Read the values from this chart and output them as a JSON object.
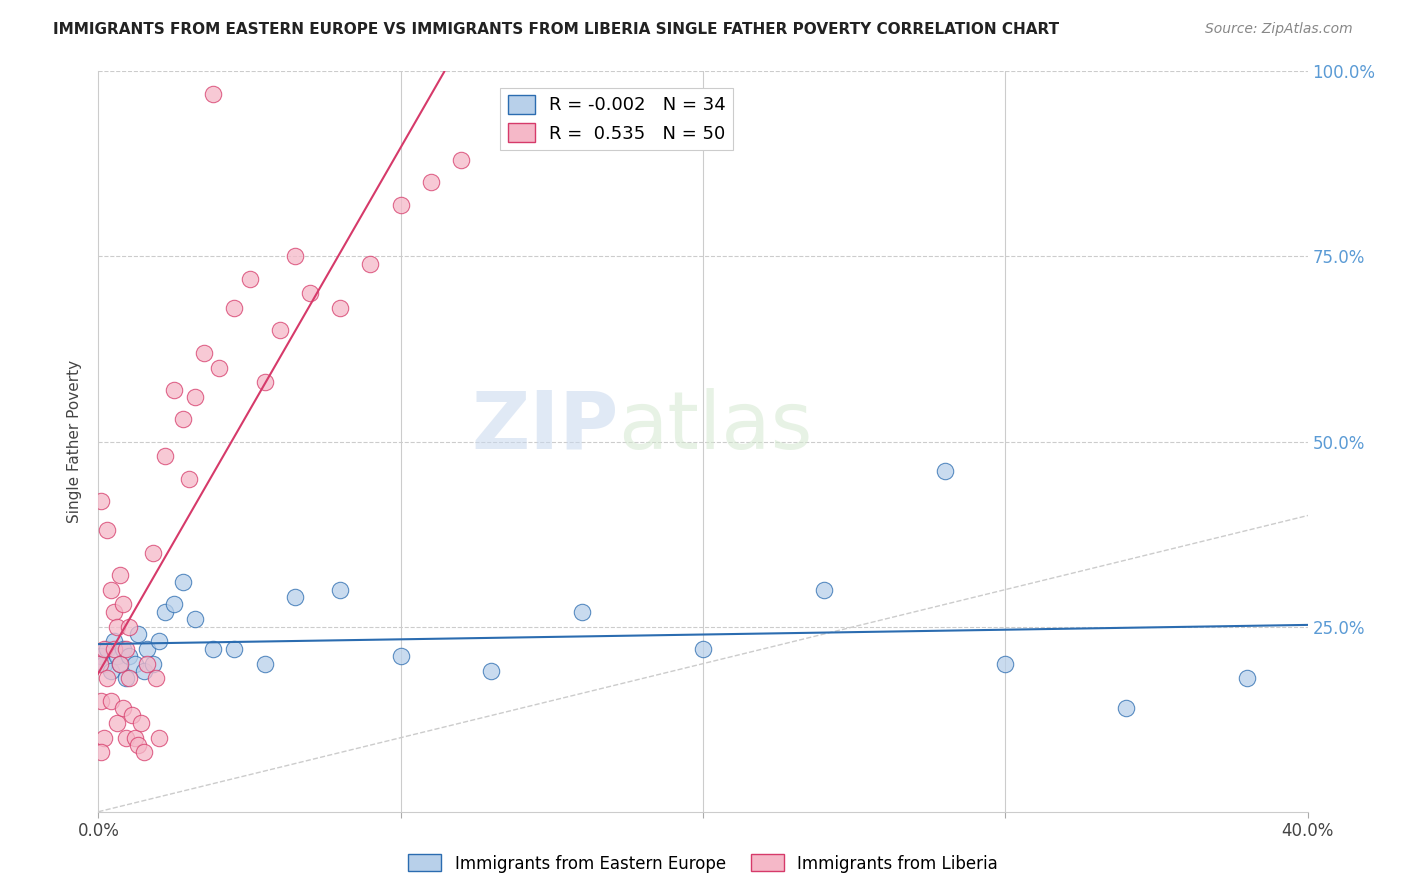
{
  "title": "IMMIGRANTS FROM EASTERN EUROPE VS IMMIGRANTS FROM LIBERIA SINGLE FATHER POVERTY CORRELATION CHART",
  "source": "Source: ZipAtlas.com",
  "ylabel": "Single Father Poverty",
  "legend_label_blue": "Immigrants from Eastern Europe",
  "legend_label_pink": "Immigrants from Liberia",
  "R_blue": -0.002,
  "N_blue": 34,
  "R_pink": 0.535,
  "N_pink": 50,
  "color_blue": "#b8d0ea",
  "color_pink": "#f5b8c8",
  "line_color_blue": "#2b6cb0",
  "line_color_pink": "#d63a6a",
  "watermark_zip": "ZIP",
  "watermark_atlas": "atlas",
  "blue_x": [
    0.001,
    0.002,
    0.003,
    0.004,
    0.005,
    0.006,
    0.007,
    0.008,
    0.009,
    0.01,
    0.012,
    0.013,
    0.015,
    0.016,
    0.018,
    0.02,
    0.022,
    0.025,
    0.028,
    0.032,
    0.038,
    0.045,
    0.055,
    0.065,
    0.08,
    0.1,
    0.13,
    0.16,
    0.2,
    0.24,
    0.28,
    0.3,
    0.34,
    0.38
  ],
  "blue_y": [
    0.21,
    0.2,
    0.22,
    0.19,
    0.23,
    0.21,
    0.2,
    0.22,
    0.18,
    0.21,
    0.2,
    0.24,
    0.19,
    0.22,
    0.2,
    0.23,
    0.27,
    0.28,
    0.31,
    0.26,
    0.22,
    0.22,
    0.2,
    0.29,
    0.3,
    0.21,
    0.19,
    0.27,
    0.22,
    0.3,
    0.46,
    0.2,
    0.14,
    0.18
  ],
  "pink_x": [
    0.0005,
    0.001,
    0.001,
    0.002,
    0.002,
    0.003,
    0.003,
    0.004,
    0.004,
    0.005,
    0.005,
    0.006,
    0.006,
    0.007,
    0.007,
    0.008,
    0.008,
    0.009,
    0.009,
    0.01,
    0.01,
    0.011,
    0.012,
    0.013,
    0.014,
    0.015,
    0.016,
    0.018,
    0.019,
    0.02,
    0.022,
    0.025,
    0.028,
    0.03,
    0.032,
    0.035,
    0.038,
    0.04,
    0.045,
    0.05,
    0.055,
    0.06,
    0.065,
    0.07,
    0.08,
    0.09,
    0.1,
    0.11,
    0.12,
    0.001
  ],
  "pink_y": [
    0.2,
    0.15,
    0.42,
    0.1,
    0.22,
    0.18,
    0.38,
    0.15,
    0.3,
    0.22,
    0.27,
    0.12,
    0.25,
    0.2,
    0.32,
    0.14,
    0.28,
    0.1,
    0.22,
    0.18,
    0.25,
    0.13,
    0.1,
    0.09,
    0.12,
    0.08,
    0.2,
    0.35,
    0.18,
    0.1,
    0.48,
    0.57,
    0.53,
    0.45,
    0.56,
    0.62,
    0.97,
    0.6,
    0.68,
    0.72,
    0.58,
    0.65,
    0.75,
    0.7,
    0.68,
    0.74,
    0.82,
    0.85,
    0.88,
    0.08
  ],
  "xlim": [
    0,
    0.4
  ],
  "ylim": [
    0,
    1.0
  ],
  "xtick_minor": [
    0.1,
    0.2,
    0.3
  ],
  "xtick_major_labels": [
    [
      0.0,
      "0.0%"
    ],
    [
      0.4,
      "40.0%"
    ]
  ],
  "ytick_right": [
    [
      0.25,
      "25.0%"
    ],
    [
      0.5,
      "50.0%"
    ],
    [
      0.75,
      "75.0%"
    ],
    [
      1.0,
      "100.0%"
    ]
  ]
}
